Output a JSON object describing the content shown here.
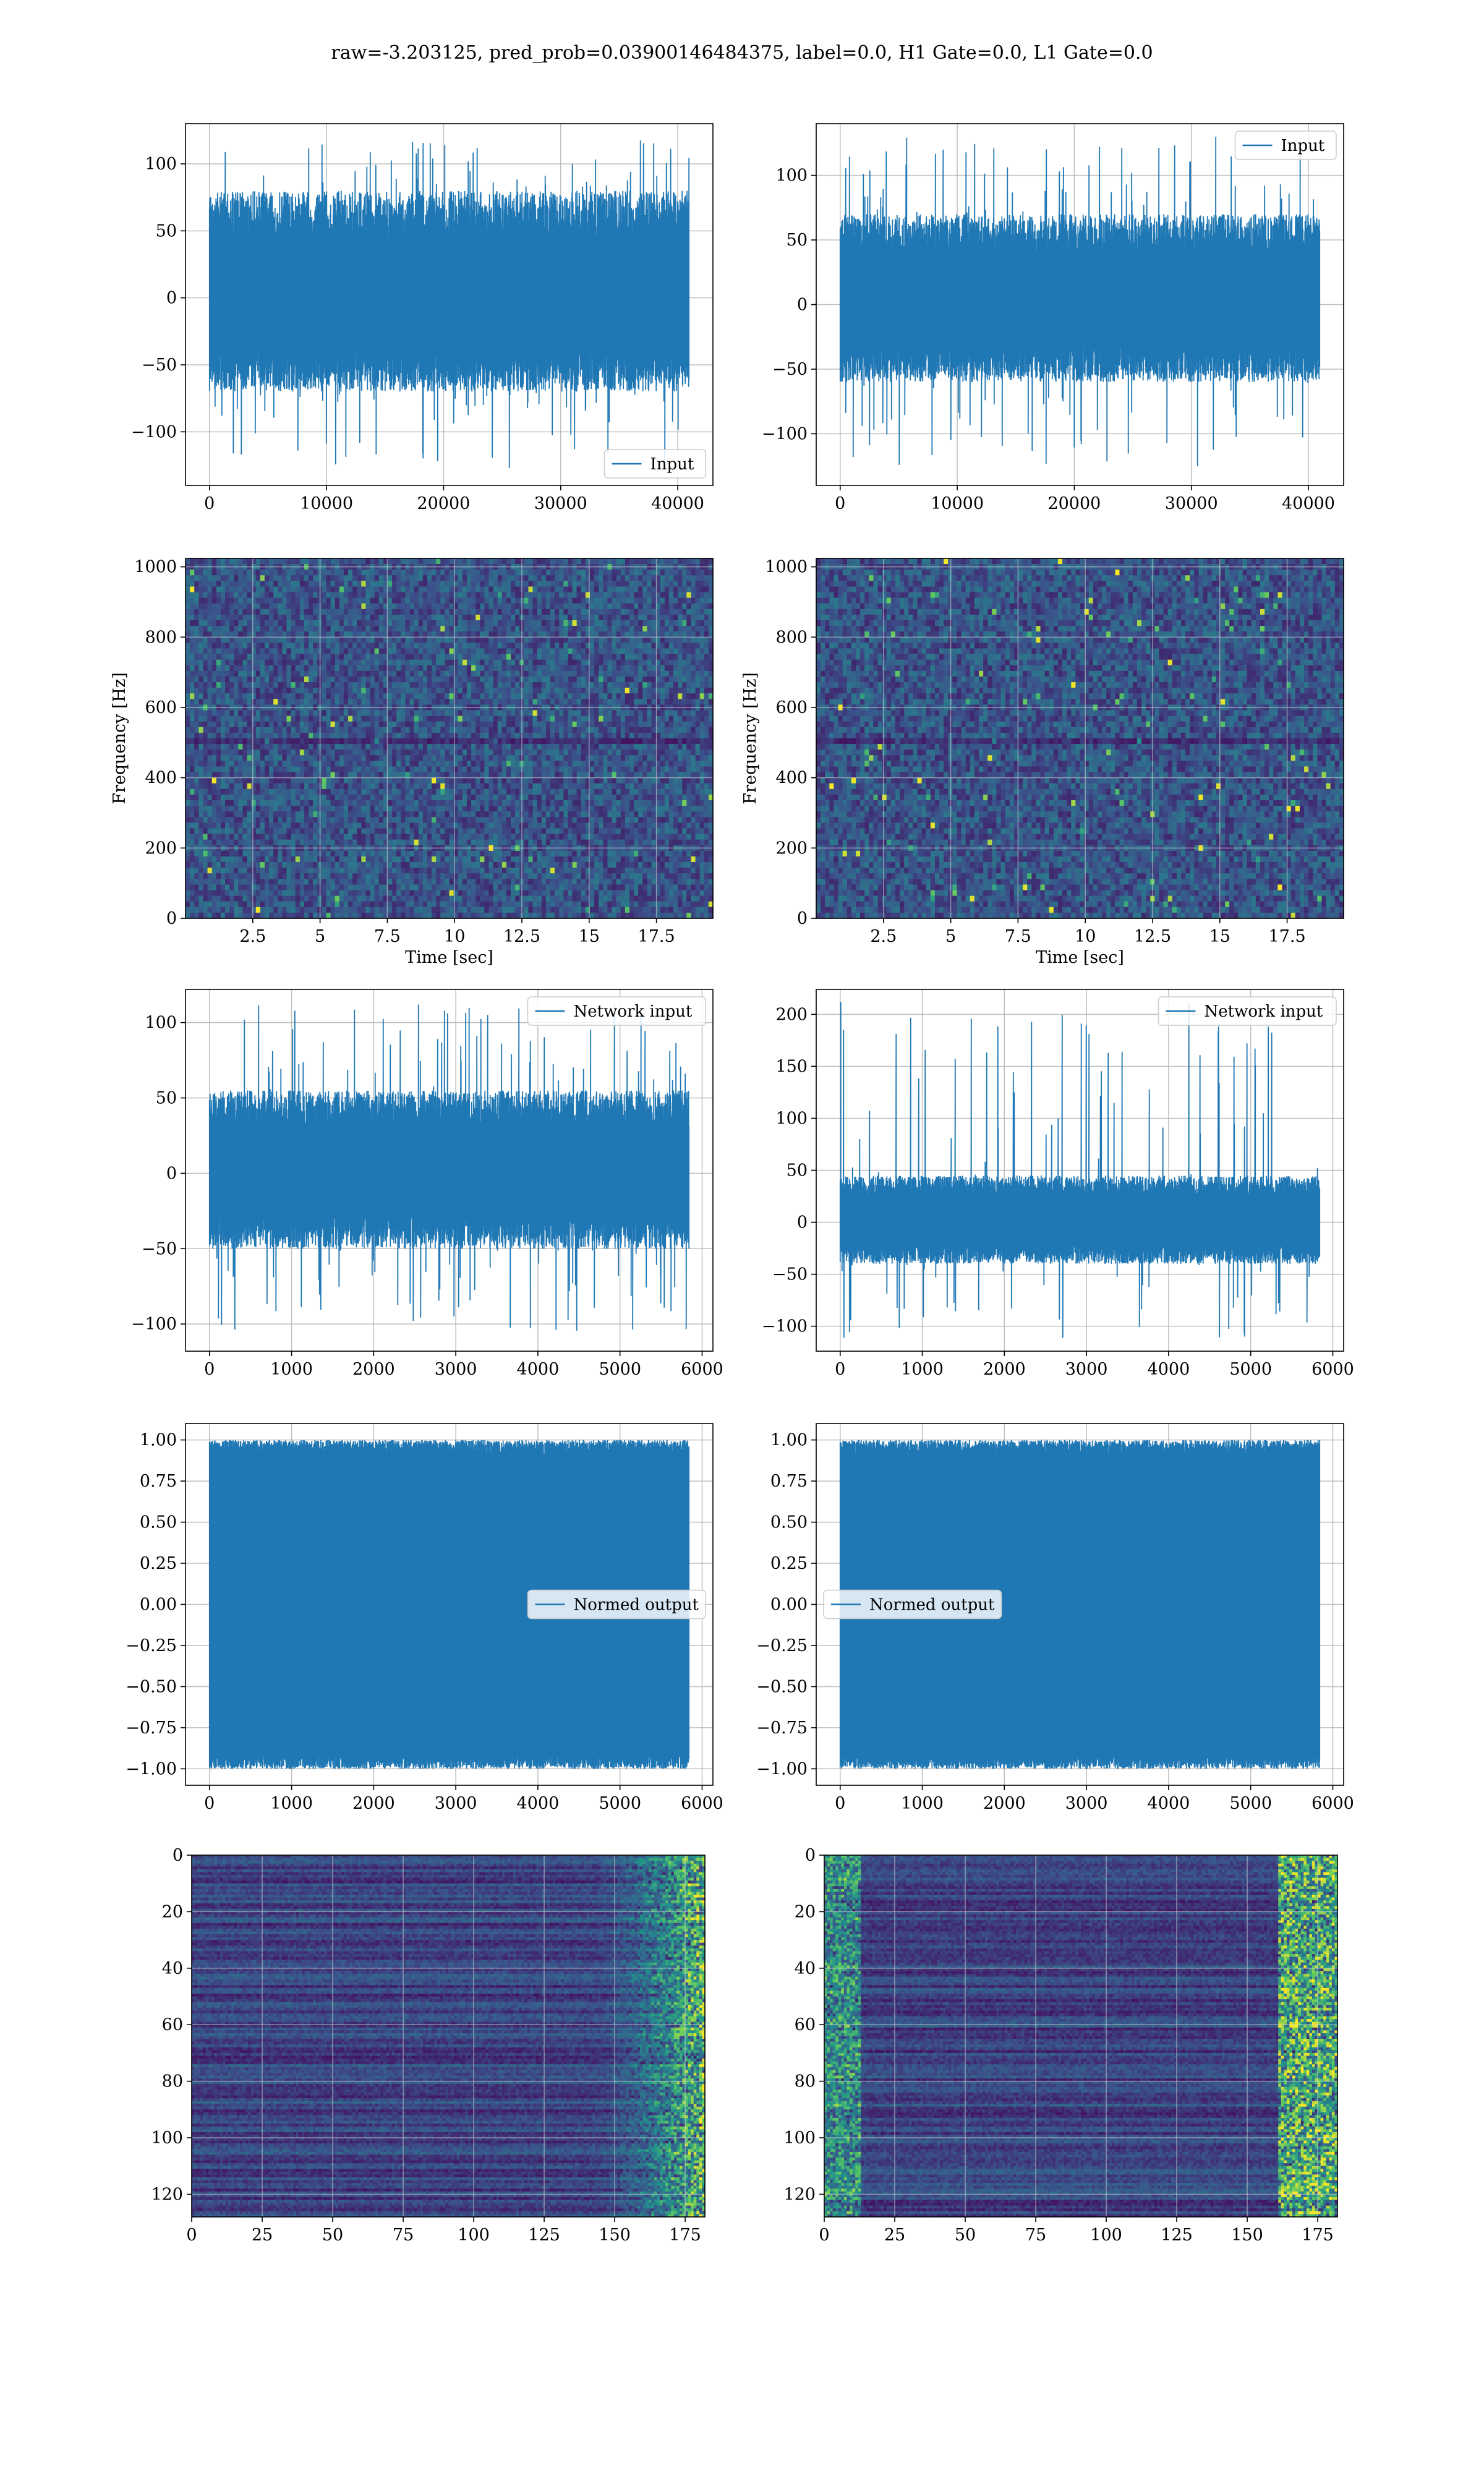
{
  "figure": {
    "suptitle": "raw=-3.203125, pred_prob=0.03900146484375, label=0.0, H1 Gate=0.0, L1 Gate=0.0"
  },
  "chart_data": [
    {
      "id": "h1-input",
      "type": "line",
      "series": [
        {
          "name": "Input",
          "color": "#1f77b4"
        }
      ],
      "x_range": [
        0,
        40960
      ],
      "y_envelope_typical": [
        -70,
        80
      ],
      "y_peaks": [
        -128,
        118
      ],
      "xlim": [
        -2048,
        43008
      ],
      "ylim": [
        -140,
        130
      ],
      "xticks": [
        0,
        10000,
        20000,
        30000,
        40000
      ],
      "yticks": [
        -100,
        -50,
        0,
        50,
        100
      ],
      "legend": "lower-right",
      "grid": true
    },
    {
      "id": "l1-input",
      "type": "line",
      "series": [
        {
          "name": "Input",
          "color": "#1f77b4"
        }
      ],
      "x_range": [
        0,
        40960
      ],
      "y_envelope_typical": [
        -60,
        70
      ],
      "y_peaks": [
        -128,
        130
      ],
      "xlim": [
        -2048,
        43008
      ],
      "ylim": [
        -140,
        140
      ],
      "xticks": [
        0,
        10000,
        20000,
        30000,
        40000
      ],
      "yticks": [
        -100,
        -50,
        0,
        50,
        100
      ],
      "legend": "top-right",
      "grid": true
    },
    {
      "id": "h1-spectrogram",
      "type": "heatmap",
      "xlabel": "Time [sec]",
      "ylabel": "Frequency [Hz]",
      "xlim": [
        0,
        19.6
      ],
      "ylim": [
        0,
        1024
      ],
      "xticks": [
        2.5,
        5.0,
        7.5,
        10.0,
        12.5,
        15.0,
        17.5
      ],
      "yticks": [
        0,
        200,
        400,
        600,
        800,
        1000
      ],
      "colormap": [
        "#440154",
        "#3b528b",
        "#21918c",
        "#5ec962",
        "#fde725"
      ],
      "grid": true
    },
    {
      "id": "l1-spectrogram",
      "type": "heatmap",
      "xlabel": "Time [sec]",
      "ylabel": "Frequency [Hz]",
      "xlim": [
        0,
        19.6
      ],
      "ylim": [
        0,
        1024
      ],
      "xticks": [
        2.5,
        5.0,
        7.5,
        10.0,
        12.5,
        15.0,
        17.5
      ],
      "yticks": [
        0,
        200,
        400,
        600,
        800,
        1000
      ],
      "colormap": [
        "#440154",
        "#3b528b",
        "#21918c",
        "#5ec962",
        "#fde725"
      ],
      "grid": true
    },
    {
      "id": "h1-network-input",
      "type": "line",
      "series": [
        {
          "name": "Network input",
          "color": "#1f77b4"
        }
      ],
      "x_range": [
        0,
        5840
      ],
      "y_envelope_typical": [
        -50,
        55
      ],
      "y_peaks": [
        -105,
        112
      ],
      "xlim": [
        -292,
        6132
      ],
      "ylim": [
        -118,
        122
      ],
      "xticks": [
        0,
        1000,
        2000,
        3000,
        4000,
        5000,
        6000
      ],
      "yticks": [
        -100,
        -50,
        0,
        50,
        100
      ],
      "legend": "top-right",
      "grid": true
    },
    {
      "id": "l1-network-input",
      "type": "line",
      "series": [
        {
          "name": "Network input",
          "color": "#1f77b4"
        }
      ],
      "x_range": [
        0,
        5840
      ],
      "y_envelope_typical": [
        -40,
        45
      ],
      "y_peaks": [
        -112,
        212
      ],
      "xlim": [
        -292,
        6132
      ],
      "ylim": [
        -124,
        224
      ],
      "xticks": [
        0,
        1000,
        2000,
        3000,
        4000,
        5000,
        6000
      ],
      "yticks": [
        -100,
        -50,
        0,
        50,
        100,
        150,
        200
      ],
      "legend": "top-right",
      "grid": true
    },
    {
      "id": "h1-normed-output",
      "type": "line",
      "series": [
        {
          "name": "Normed output",
          "color": "#1f77b4"
        }
      ],
      "x_range": [
        0,
        5840
      ],
      "y_envelope_typical": [
        -0.9,
        0.9
      ],
      "y_peaks": [
        -1.0,
        1.0
      ],
      "xlim": [
        -292,
        6132
      ],
      "ylim": [
        -1.1,
        1.1
      ],
      "xticks": [
        0,
        1000,
        2000,
        3000,
        4000,
        5000,
        6000
      ],
      "yticks": [
        -1.0,
        -0.75,
        -0.5,
        -0.25,
        0.0,
        0.25,
        0.5,
        0.75,
        1.0
      ],
      "ytick_labels": [
        "−1.00",
        "−0.75",
        "−0.50",
        "−0.25",
        "0.00",
        "0.25",
        "0.50",
        "0.75",
        "1.00"
      ],
      "legend": "center-right",
      "grid": true
    },
    {
      "id": "l1-normed-output",
      "type": "line",
      "series": [
        {
          "name": "Normed output",
          "color": "#1f77b4"
        }
      ],
      "x_range": [
        0,
        5840
      ],
      "y_envelope_typical": [
        -0.9,
        0.9
      ],
      "y_peaks": [
        -1.0,
        1.0
      ],
      "xlim": [
        -292,
        6132
      ],
      "ylim": [
        -1.1,
        1.1
      ],
      "xticks": [
        0,
        1000,
        2000,
        3000,
        4000,
        5000,
        6000
      ],
      "yticks": [
        -1.0,
        -0.75,
        -0.5,
        -0.25,
        0.0,
        0.25,
        0.5,
        0.75,
        1.0
      ],
      "ytick_labels": [
        "−1.00",
        "−0.75",
        "−0.50",
        "−0.25",
        "0.00",
        "0.25",
        "0.50",
        "0.75",
        "1.00"
      ],
      "legend": "center-left",
      "grid": true
    },
    {
      "id": "h1-feature-map",
      "type": "heatmap",
      "xlim": [
        0,
        182
      ],
      "ylim": [
        128,
        0
      ],
      "xticks": [
        0,
        25,
        50,
        75,
        100,
        125,
        150,
        175
      ],
      "yticks": [
        0,
        20,
        40,
        60,
        80,
        100,
        120
      ],
      "colormap": [
        "#440154",
        "#3b528b",
        "#21918c",
        "#5ec962",
        "#fde725"
      ],
      "grid": true
    },
    {
      "id": "l1-feature-map",
      "type": "heatmap",
      "xlim": [
        0,
        182
      ],
      "ylim": [
        128,
        0
      ],
      "xticks": [
        0,
        25,
        50,
        75,
        100,
        125,
        150,
        175
      ],
      "yticks": [
        0,
        20,
        40,
        60,
        80,
        100,
        120
      ],
      "colormap": [
        "#440154",
        "#3b528b",
        "#21918c",
        "#5ec962",
        "#fde725"
      ],
      "grid": true
    }
  ]
}
